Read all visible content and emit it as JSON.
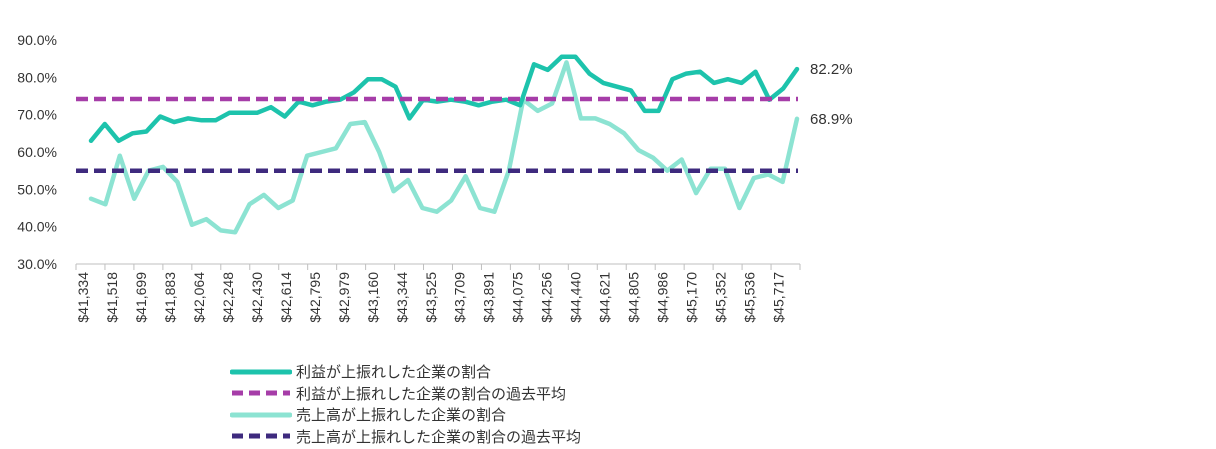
{
  "chart_data": {
    "type": "line",
    "title": "",
    "xlabel": "",
    "ylabel": "",
    "ylim": [
      30,
      90
    ],
    "y_ticks": [
      "30.0%",
      "40.0%",
      "50.0%",
      "60.0%",
      "70.0%",
      "80.0%",
      "90.0%"
    ],
    "x_tick_labels": [
      "$41,334",
      "$41,518",
      "$41,699",
      "$41,883",
      "$42,064",
      "$42,248",
      "$42,430",
      "$42,614",
      "$42,795",
      "$42,979",
      "$43,160",
      "$43,344",
      "$43,525",
      "$43,709",
      "$43,891",
      "$44,075",
      "$44,256",
      "$44,440",
      "$44,621",
      "$44,805",
      "$44,986",
      "$45,170",
      "$45,352",
      "$45,536",
      "$45,717"
    ],
    "x_labels_every": 2,
    "grid": false,
    "legend_position": "bottom",
    "series": [
      {
        "name": "利益が上振れした企業の割合",
        "color": "#1DC3AC",
        "style": "solid",
        "end_label": "82.2%",
        "values": [
          63,
          67.5,
          63,
          65,
          65.5,
          69.5,
          68,
          69,
          68.5,
          68.5,
          70.5,
          70.5,
          70.5,
          72,
          69.5,
          73.5,
          72.5,
          73.5,
          74,
          76,
          79.5,
          79.5,
          77.5,
          69,
          74,
          73.5,
          74,
          73.5,
          72.5,
          73.5,
          74,
          72.5,
          83.5,
          82,
          85.5,
          85.5,
          81,
          78.5,
          77.5,
          76.5,
          71,
          71,
          79.5,
          81,
          81.5,
          78.5,
          79.5,
          78.5,
          81.5,
          74,
          77,
          82.2
        ]
      },
      {
        "name": "利益が上振れした企業の割合の過去平均",
        "color": "#A63DA8",
        "style": "dashed",
        "values": [
          74.2,
          74.2
        ]
      },
      {
        "name": "売上高が上振れした企業の割合",
        "color": "#8CE3D2",
        "style": "solid",
        "end_label": "68.9%",
        "values": [
          47.5,
          46,
          59,
          47.5,
          55,
          56,
          52,
          40.5,
          42,
          39,
          38.5,
          46,
          48.5,
          45,
          47,
          59,
          60,
          61,
          67.5,
          68,
          60,
          49.5,
          52.5,
          45,
          44,
          47,
          53.5,
          45,
          44,
          55,
          74,
          71,
          73,
          84,
          69,
          69,
          67.5,
          65,
          60.5,
          58.5,
          55,
          58,
          49,
          55.5,
          55.5,
          45,
          53,
          54,
          52,
          68.9
        ]
      },
      {
        "name": "売上高が上振れした企業の割合の過去平均",
        "color": "#3E2A7E",
        "style": "dashed",
        "values": [
          55,
          55
        ]
      }
    ]
  }
}
